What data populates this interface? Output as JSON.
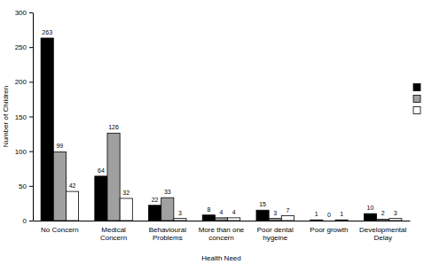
{
  "chart_data": {
    "type": "bar",
    "x_label": "Health Need",
    "y_label": "Number of Children",
    "categories": [
      "No Concern",
      "Medical Concern",
      "Behavioural Problems",
      "More than one concern",
      "Poor dental hygeine",
      "Poor growth",
      "Developmental Delay"
    ],
    "series": [
      {
        "color": "#000000",
        "values": [
          263,
          64,
          22,
          8,
          15,
          1,
          10
        ]
      },
      {
        "color": "#a0a0a0",
        "values": [
          99,
          126,
          33,
          4,
          3,
          0,
          2
        ]
      },
      {
        "color": "#ffffff",
        "values": [
          42,
          32,
          3,
          4,
          7,
          1,
          3
        ]
      }
    ],
    "ylim": [
      0,
      300
    ],
    "yticks": [
      0,
      50,
      100,
      150,
      200,
      250,
      300
    ],
    "grid": false,
    "data_labels": true,
    "legend": "right"
  }
}
